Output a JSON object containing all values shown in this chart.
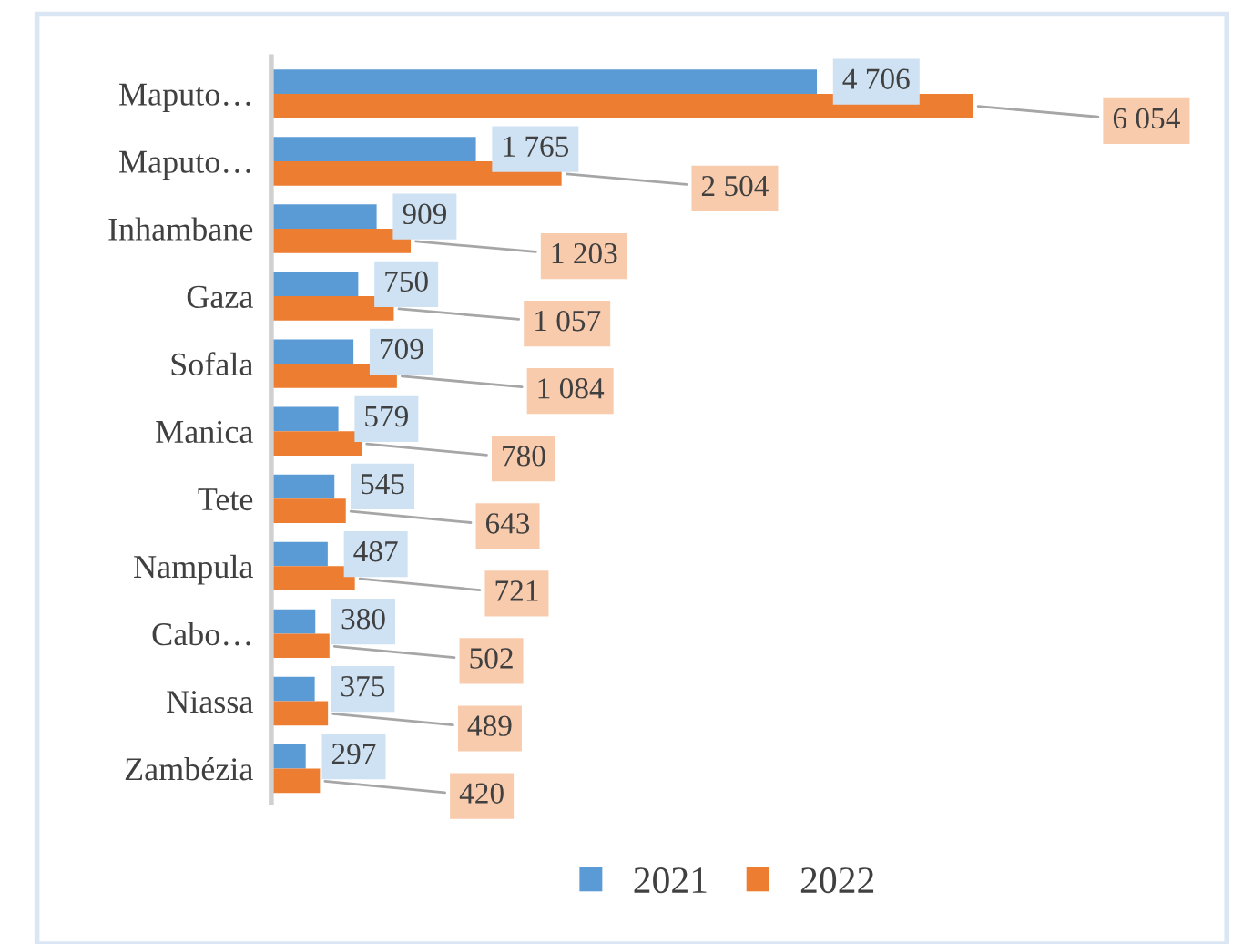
{
  "chart_data": {
    "type": "bar",
    "orientation": "horizontal",
    "categories": [
      "Maputo…",
      "Maputo…",
      "Inhambane",
      "Gaza",
      "Sofala",
      "Manica",
      "Tete",
      "Nampula",
      "Cabo…",
      "Niassa",
      "Zambézia"
    ],
    "series": [
      {
        "name": "2021",
        "color": "#5b9bd5",
        "values": [
          4706,
          1765,
          909,
          750,
          709,
          579,
          545,
          487,
          380,
          375,
          297
        ],
        "value_labels": [
          "4 706",
          "1 765",
          "909",
          "750",
          "709",
          "579",
          "545",
          "487",
          "380",
          "375",
          "297"
        ]
      },
      {
        "name": "2022",
        "color": "#ed7d31",
        "values": [
          6054,
          2504,
          1203,
          1057,
          1084,
          780,
          643,
          721,
          502,
          489,
          420
        ],
        "value_labels": [
          "6 054",
          "2 504",
          "1 203",
          "1 057",
          "1 084",
          "780",
          "643",
          "721",
          "502",
          "489",
          "420"
        ]
      }
    ],
    "legend": "bottom",
    "grid": false,
    "tick_labels": "y"
  }
}
